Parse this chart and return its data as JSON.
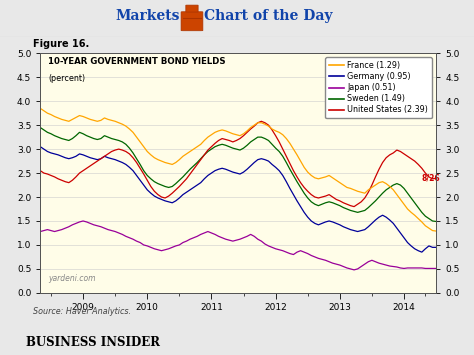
{
  "title_left": "Markets",
  "title_right": "Chart of the Day",
  "figure_label": "Figure 16.",
  "chart_title": "10-YEAR GOVERNMENT BOND YIELDS",
  "chart_subtitle": "(percent)",
  "source": "Source: Haver Analytics.",
  "watermark": "yardeni.com",
  "footer": "BUSINESS INSIDER",
  "date_annotation": "8/26",
  "ylim": [
    0.0,
    5.0
  ],
  "yticks": [
    0.0,
    0.5,
    1.0,
    1.5,
    2.0,
    2.5,
    3.0,
    3.5,
    4.0,
    4.5,
    5.0
  ],
  "bg_color": "#FFFDE8",
  "legend_entries": [
    {
      "label": "France (1.29)",
      "color": "#FFA500"
    },
    {
      "label": "Germany (0.95)",
      "color": "#000099"
    },
    {
      "label": "Japan (0.51)",
      "color": "#990099"
    },
    {
      "label": "Sweden (1.49)",
      "color": "#006600"
    },
    {
      "label": "United States (2.39)",
      "color": "#CC0000"
    }
  ],
  "france": [
    3.85,
    3.8,
    3.75,
    3.72,
    3.68,
    3.65,
    3.62,
    3.6,
    3.58,
    3.62,
    3.66,
    3.7,
    3.68,
    3.65,
    3.62,
    3.6,
    3.58,
    3.6,
    3.65,
    3.62,
    3.6,
    3.58,
    3.55,
    3.52,
    3.48,
    3.42,
    3.35,
    3.25,
    3.15,
    3.05,
    2.95,
    2.88,
    2.82,
    2.78,
    2.75,
    2.72,
    2.7,
    2.68,
    2.72,
    2.78,
    2.85,
    2.9,
    2.95,
    3.0,
    3.05,
    3.1,
    3.18,
    3.25,
    3.3,
    3.35,
    3.38,
    3.4,
    3.38,
    3.35,
    3.32,
    3.3,
    3.28,
    3.32,
    3.38,
    3.45,
    3.5,
    3.55,
    3.55,
    3.52,
    3.48,
    3.42,
    3.38,
    3.35,
    3.3,
    3.22,
    3.12,
    3.0,
    2.88,
    2.75,
    2.62,
    2.52,
    2.45,
    2.4,
    2.38,
    2.4,
    2.42,
    2.45,
    2.4,
    2.35,
    2.3,
    2.25,
    2.2,
    2.18,
    2.15,
    2.12,
    2.1,
    2.08,
    2.15,
    2.2,
    2.25,
    2.3,
    2.32,
    2.28,
    2.22,
    2.15,
    2.05,
    1.95,
    1.85,
    1.75,
    1.68,
    1.62,
    1.55,
    1.48,
    1.4,
    1.35,
    1.3,
    1.29
  ],
  "germany": [
    3.05,
    3.0,
    2.95,
    2.92,
    2.9,
    2.88,
    2.85,
    2.82,
    2.8,
    2.82,
    2.85,
    2.9,
    2.88,
    2.85,
    2.82,
    2.8,
    2.78,
    2.8,
    2.85,
    2.82,
    2.8,
    2.78,
    2.75,
    2.72,
    2.68,
    2.62,
    2.55,
    2.45,
    2.35,
    2.25,
    2.15,
    2.08,
    2.02,
    1.98,
    1.95,
    1.92,
    1.9,
    1.88,
    1.92,
    1.98,
    2.05,
    2.1,
    2.15,
    2.2,
    2.25,
    2.3,
    2.38,
    2.45,
    2.5,
    2.55,
    2.58,
    2.6,
    2.58,
    2.55,
    2.52,
    2.5,
    2.48,
    2.52,
    2.58,
    2.65,
    2.72,
    2.78,
    2.8,
    2.78,
    2.75,
    2.68,
    2.62,
    2.55,
    2.45,
    2.32,
    2.18,
    2.05,
    1.92,
    1.8,
    1.68,
    1.58,
    1.5,
    1.45,
    1.42,
    1.45,
    1.48,
    1.5,
    1.48,
    1.45,
    1.42,
    1.38,
    1.35,
    1.32,
    1.3,
    1.28,
    1.3,
    1.32,
    1.38,
    1.45,
    1.52,
    1.58,
    1.62,
    1.58,
    1.52,
    1.45,
    1.35,
    1.25,
    1.15,
    1.05,
    0.98,
    0.92,
    0.88,
    0.85,
    0.92,
    0.98,
    0.95,
    0.95
  ],
  "japan": [
    1.28,
    1.3,
    1.32,
    1.3,
    1.28,
    1.3,
    1.32,
    1.35,
    1.38,
    1.42,
    1.45,
    1.48,
    1.5,
    1.48,
    1.45,
    1.42,
    1.4,
    1.38,
    1.35,
    1.32,
    1.3,
    1.28,
    1.25,
    1.22,
    1.18,
    1.15,
    1.12,
    1.08,
    1.05,
    1.0,
    0.98,
    0.95,
    0.92,
    0.9,
    0.88,
    0.9,
    0.92,
    0.95,
    0.98,
    1.0,
    1.05,
    1.08,
    1.12,
    1.15,
    1.18,
    1.22,
    1.25,
    1.28,
    1.25,
    1.22,
    1.18,
    1.15,
    1.12,
    1.1,
    1.08,
    1.1,
    1.12,
    1.15,
    1.18,
    1.22,
    1.18,
    1.12,
    1.08,
    1.02,
    0.98,
    0.95,
    0.92,
    0.9,
    0.88,
    0.85,
    0.82,
    0.8,
    0.85,
    0.88,
    0.85,
    0.82,
    0.78,
    0.75,
    0.72,
    0.7,
    0.68,
    0.65,
    0.62,
    0.6,
    0.58,
    0.55,
    0.52,
    0.5,
    0.48,
    0.5,
    0.55,
    0.6,
    0.65,
    0.68,
    0.65,
    0.62,
    0.6,
    0.58,
    0.56,
    0.55,
    0.54,
    0.52,
    0.51,
    0.52,
    0.52,
    0.52,
    0.52,
    0.52,
    0.51,
    0.51,
    0.51,
    0.51
  ],
  "sweden": [
    3.45,
    3.4,
    3.35,
    3.32,
    3.28,
    3.25,
    3.22,
    3.2,
    3.18,
    3.22,
    3.28,
    3.35,
    3.32,
    3.28,
    3.25,
    3.22,
    3.2,
    3.22,
    3.28,
    3.25,
    3.22,
    3.2,
    3.18,
    3.15,
    3.1,
    3.02,
    2.92,
    2.8,
    2.68,
    2.55,
    2.45,
    2.38,
    2.32,
    2.28,
    2.25,
    2.22,
    2.2,
    2.22,
    2.28,
    2.35,
    2.42,
    2.5,
    2.58,
    2.65,
    2.72,
    2.8,
    2.88,
    2.95,
    3.0,
    3.05,
    3.08,
    3.1,
    3.08,
    3.05,
    3.02,
    3.0,
    2.98,
    3.02,
    3.08,
    3.15,
    3.2,
    3.25,
    3.25,
    3.22,
    3.18,
    3.1,
    3.02,
    2.95,
    2.85,
    2.72,
    2.58,
    2.45,
    2.32,
    2.2,
    2.08,
    1.98,
    1.9,
    1.85,
    1.82,
    1.85,
    1.88,
    1.9,
    1.88,
    1.85,
    1.82,
    1.78,
    1.75,
    1.72,
    1.7,
    1.68,
    1.7,
    1.72,
    1.78,
    1.85,
    1.92,
    2.0,
    2.08,
    2.15,
    2.2,
    2.25,
    2.28,
    2.25,
    2.18,
    2.08,
    1.98,
    1.88,
    1.78,
    1.68,
    1.6,
    1.55,
    1.5,
    1.49
  ],
  "us": [
    2.55,
    2.5,
    2.48,
    2.45,
    2.42,
    2.38,
    2.35,
    2.32,
    2.3,
    2.35,
    2.42,
    2.5,
    2.55,
    2.6,
    2.65,
    2.7,
    2.75,
    2.8,
    2.85,
    2.9,
    2.95,
    2.98,
    3.0,
    2.98,
    2.95,
    2.9,
    2.82,
    2.72,
    2.6,
    2.48,
    2.35,
    2.22,
    2.12,
    2.05,
    2.0,
    1.98,
    2.02,
    2.08,
    2.15,
    2.22,
    2.3,
    2.38,
    2.48,
    2.58,
    2.68,
    2.78,
    2.88,
    2.98,
    3.05,
    3.12,
    3.18,
    3.22,
    3.2,
    3.18,
    3.15,
    3.18,
    3.22,
    3.28,
    3.35,
    3.42,
    3.48,
    3.55,
    3.58,
    3.55,
    3.5,
    3.4,
    3.28,
    3.15,
    3.0,
    2.85,
    2.7,
    2.55,
    2.42,
    2.3,
    2.2,
    2.12,
    2.05,
    2.0,
    1.98,
    2.0,
    2.02,
    2.05,
    2.0,
    1.95,
    1.92,
    1.88,
    1.85,
    1.82,
    1.8,
    1.85,
    1.9,
    1.98,
    2.1,
    2.25,
    2.42,
    2.58,
    2.72,
    2.82,
    2.88,
    2.92,
    2.98,
    2.95,
    2.9,
    2.85,
    2.8,
    2.75,
    2.68,
    2.6,
    2.5,
    2.42,
    2.38,
    2.39
  ]
}
